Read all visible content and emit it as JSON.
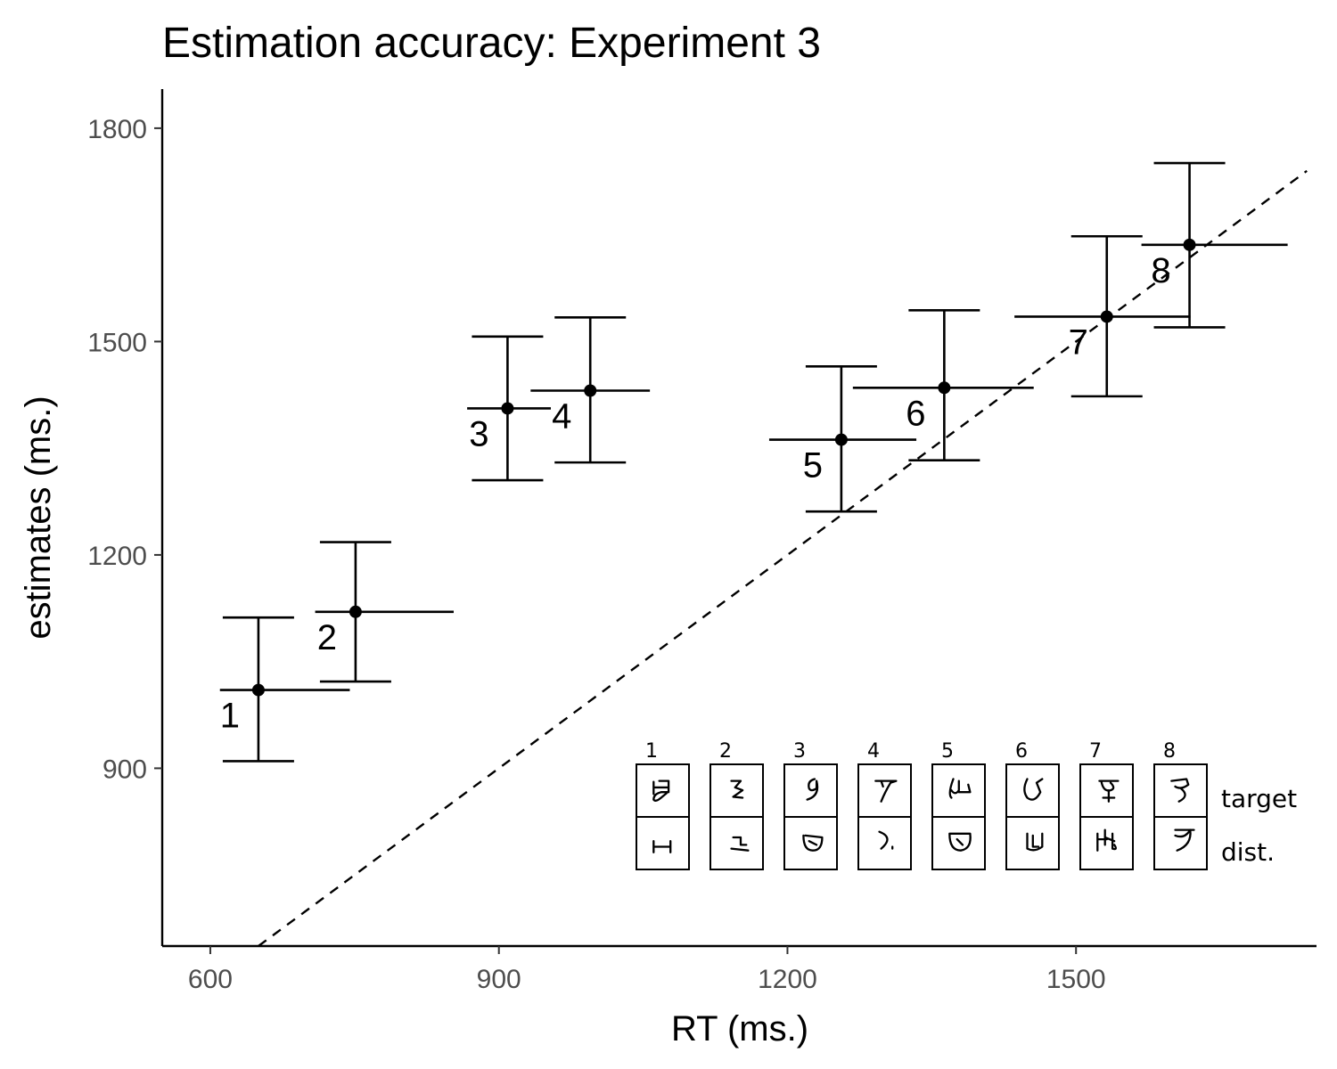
{
  "chart_data": {
    "type": "scatter",
    "title": "Estimation accuracy: Experiment 3",
    "xlabel": "RT (ms.)",
    "ylabel": "estimates (ms.)",
    "xlim": [
      550,
      1750
    ],
    "ylim": [
      650,
      1855
    ],
    "xticks": [
      600,
      900,
      1200,
      1500
    ],
    "yticks": [
      900,
      1200,
      1500,
      1800
    ],
    "xtick_labels": [
      "600",
      "900",
      "1200",
      "1500"
    ],
    "ytick_labels": [
      "900",
      "1200",
      "1500",
      "1800"
    ],
    "grid": false,
    "reference_line": {
      "style": "dashed",
      "slope": 1,
      "intercept": 0
    },
    "points": [
      {
        "label": "1",
        "x": 650,
        "y": 1010,
        "x_err": [
          610,
          745
        ],
        "y_err": [
          910,
          1112
        ]
      },
      {
        "label": "2",
        "x": 751,
        "y": 1120,
        "x_err": [
          709,
          853
        ],
        "y_err": [
          1022,
          1218
        ]
      },
      {
        "label": "3",
        "x": 909,
        "y": 1406,
        "x_err": [
          867,
          954
        ],
        "y_err": [
          1305,
          1507
        ]
      },
      {
        "label": "4",
        "x": 995,
        "y": 1431,
        "x_err": [
          933,
          1057
        ],
        "y_err": [
          1330,
          1534
        ]
      },
      {
        "label": "5",
        "x": 1256,
        "y": 1362,
        "x_err": [
          1181,
          1334
        ],
        "y_err": [
          1261,
          1465
        ]
      },
      {
        "label": "6",
        "x": 1363,
        "y": 1435,
        "x_err": [
          1268,
          1456
        ],
        "y_err": [
          1333,
          1544
        ]
      },
      {
        "label": "7",
        "x": 1532,
        "y": 1535,
        "x_err": [
          1436,
          1619
        ],
        "y_err": [
          1423,
          1648
        ]
      },
      {
        "label": "8",
        "x": 1618,
        "y": 1636,
        "x_err": [
          1568,
          1720
        ],
        "y_err": [
          1520,
          1751
        ]
      }
    ]
  },
  "inset": {
    "numbers": [
      "1",
      "2",
      "3",
      "4",
      "5",
      "6",
      "7",
      "8"
    ],
    "row_labels": {
      "target": "target",
      "distractor": "dist."
    }
  }
}
